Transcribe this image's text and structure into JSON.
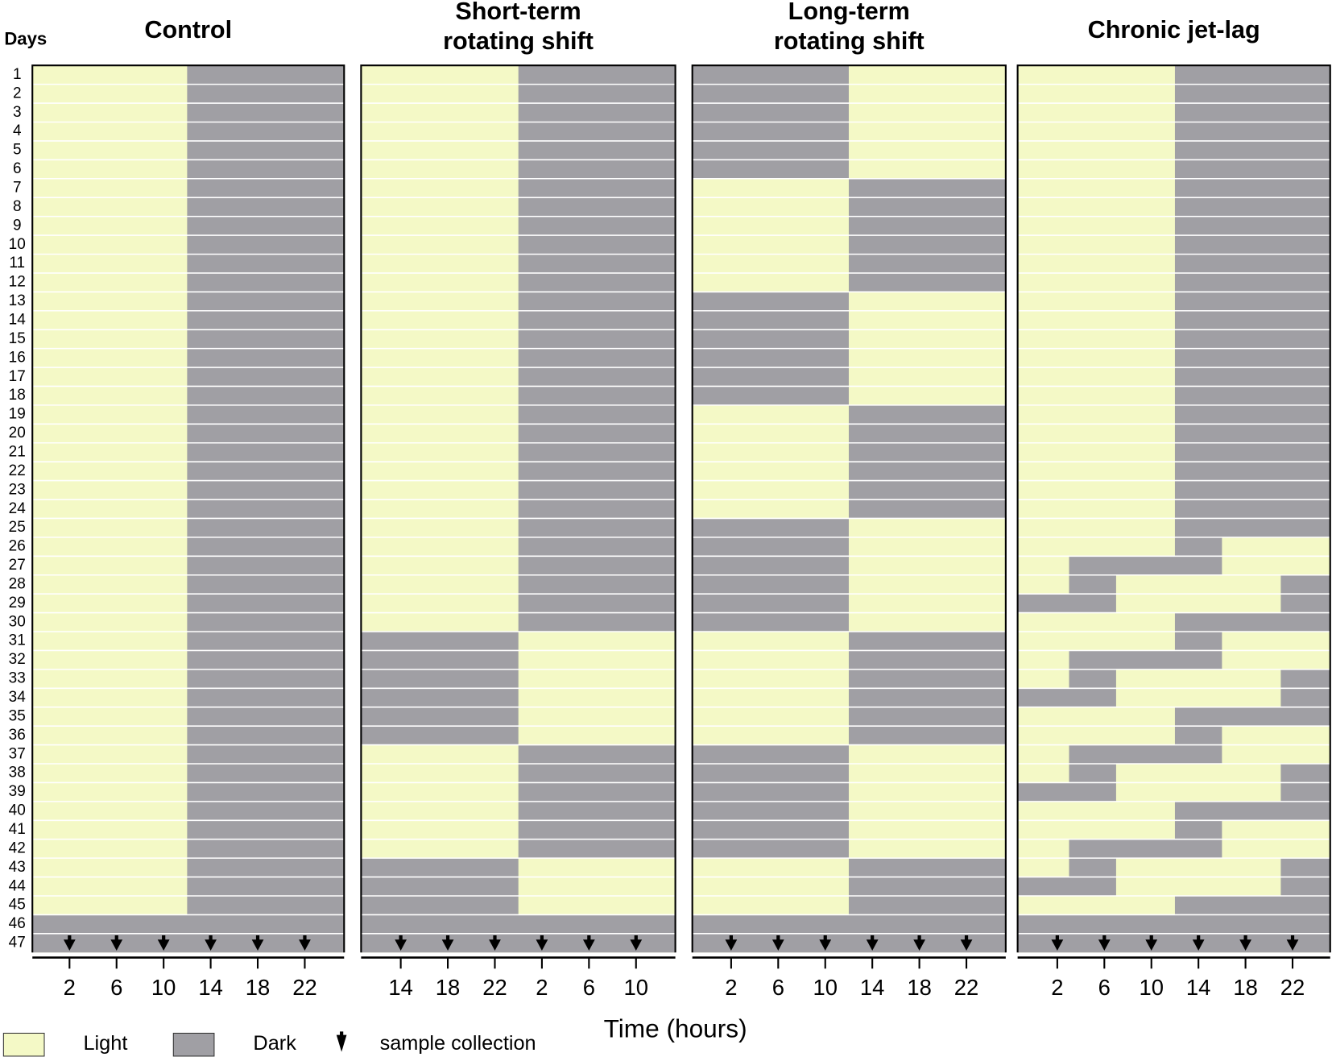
{
  "days_label": "Days",
  "days": [
    1,
    2,
    3,
    4,
    5,
    6,
    7,
    8,
    9,
    10,
    11,
    12,
    13,
    14,
    15,
    16,
    17,
    18,
    19,
    20,
    21,
    22,
    23,
    24,
    25,
    26,
    27,
    28,
    29,
    30,
    31,
    32,
    33,
    34,
    35,
    36,
    37,
    38,
    39,
    40,
    41,
    42,
    43,
    44,
    45,
    46,
    47
  ],
  "panels": [
    {
      "title_lines": [
        "Control"
      ],
      "ticks": [
        2,
        6,
        10,
        14,
        18,
        22
      ],
      "blocks": [
        {
          "days": [
            1,
            45
          ],
          "dark": [
            [
              12,
              24
            ]
          ]
        },
        {
          "days": [
            46,
            47
          ],
          "dark": [
            [
              0,
              24
            ]
          ]
        }
      ]
    },
    {
      "title_lines": [
        "Short-term",
        "rotating shift"
      ],
      "ticks": [
        14,
        18,
        22,
        2,
        6,
        10
      ],
      "blocks": [
        {
          "days": [
            1,
            30
          ],
          "dark": [
            [
              12,
              24
            ]
          ]
        },
        {
          "days": [
            31,
            36
          ],
          "dark": [
            [
              0,
              12
            ]
          ]
        },
        {
          "days": [
            37,
            42
          ],
          "dark": [
            [
              12,
              24
            ]
          ]
        },
        {
          "days": [
            43,
            45
          ],
          "dark": [
            [
              0,
              12
            ]
          ]
        },
        {
          "days": [
            46,
            47
          ],
          "dark": [
            [
              0,
              24
            ]
          ]
        }
      ]
    },
    {
      "title_lines": [
        "Long-term",
        "rotating shift"
      ],
      "ticks": [
        2,
        6,
        10,
        14,
        18,
        22
      ],
      "blocks": [
        {
          "days": [
            1,
            6
          ],
          "dark": [
            [
              0,
              12
            ]
          ]
        },
        {
          "days": [
            7,
            12
          ],
          "dark": [
            [
              12,
              24
            ]
          ]
        },
        {
          "days": [
            13,
            18
          ],
          "dark": [
            [
              0,
              12
            ]
          ]
        },
        {
          "days": [
            19,
            24
          ],
          "dark": [
            [
              12,
              24
            ]
          ]
        },
        {
          "days": [
            25,
            30
          ],
          "dark": [
            [
              0,
              12
            ]
          ]
        },
        {
          "days": [
            31,
            36
          ],
          "dark": [
            [
              12,
              24
            ]
          ]
        },
        {
          "days": [
            37,
            42
          ],
          "dark": [
            [
              0,
              12
            ]
          ]
        },
        {
          "days": [
            43,
            45
          ],
          "dark": [
            [
              12,
              24
            ]
          ]
        },
        {
          "days": [
            46,
            47
          ],
          "dark": [
            [
              0,
              24
            ]
          ]
        }
      ]
    },
    {
      "title_lines": [
        "Chronic jet-lag"
      ],
      "ticks": [
        2,
        6,
        10,
        14,
        18,
        22
      ],
      "blocks": [
        {
          "days": [
            1,
            25
          ],
          "dark": [
            [
              12,
              24
            ]
          ]
        },
        {
          "days": [
            26,
            26
          ],
          "dark": [
            [
              12,
              16
            ]
          ]
        },
        {
          "days": [
            27,
            27
          ],
          "dark": [
            [
              3,
              16
            ]
          ]
        },
        {
          "days": [
            28,
            28
          ],
          "dark": [
            [
              3,
              7
            ],
            [
              21,
              24
            ]
          ]
        },
        {
          "days": [
            29,
            29
          ],
          "dark": [
            [
              0,
              7
            ],
            [
              21,
              24
            ]
          ]
        },
        {
          "days": [
            30,
            30
          ],
          "dark": [
            [
              12,
              24
            ]
          ]
        },
        {
          "days": [
            31,
            31
          ],
          "dark": [
            [
              12,
              16
            ]
          ]
        },
        {
          "days": [
            32,
            32
          ],
          "dark": [
            [
              3,
              16
            ]
          ]
        },
        {
          "days": [
            33,
            33
          ],
          "dark": [
            [
              3,
              7
            ],
            [
              21,
              24
            ]
          ]
        },
        {
          "days": [
            34,
            34
          ],
          "dark": [
            [
              0,
              7
            ],
            [
              21,
              24
            ]
          ]
        },
        {
          "days": [
            35,
            35
          ],
          "dark": [
            [
              12,
              24
            ]
          ]
        },
        {
          "days": [
            36,
            36
          ],
          "dark": [
            [
              12,
              16
            ]
          ]
        },
        {
          "days": [
            37,
            37
          ],
          "dark": [
            [
              3,
              16
            ]
          ]
        },
        {
          "days": [
            38,
            38
          ],
          "dark": [
            [
              3,
              7
            ],
            [
              21,
              24
            ]
          ]
        },
        {
          "days": [
            39,
            39
          ],
          "dark": [
            [
              0,
              7
            ],
            [
              21,
              24
            ]
          ]
        },
        {
          "days": [
            40,
            40
          ],
          "dark": [
            [
              12,
              24
            ]
          ]
        },
        {
          "days": [
            41,
            41
          ],
          "dark": [
            [
              12,
              16
            ]
          ]
        },
        {
          "days": [
            42,
            42
          ],
          "dark": [
            [
              3,
              16
            ]
          ]
        },
        {
          "days": [
            43,
            43
          ],
          "dark": [
            [
              3,
              7
            ],
            [
              21,
              24
            ]
          ]
        },
        {
          "days": [
            44,
            44
          ],
          "dark": [
            [
              0,
              7
            ],
            [
              21,
              24
            ]
          ]
        },
        {
          "days": [
            45,
            45
          ],
          "dark": [
            [
              12,
              24
            ]
          ]
        },
        {
          "days": [
            46,
            47
          ],
          "dark": [
            [
              0,
              24
            ]
          ]
        }
      ]
    }
  ],
  "x_axis_title": "Time (hours)",
  "legend": {
    "light": "Light",
    "dark": "Dark",
    "sample": "sample collection"
  },
  "colors": {
    "light": "#f4f9c6",
    "dark": "#a09fa4"
  }
}
